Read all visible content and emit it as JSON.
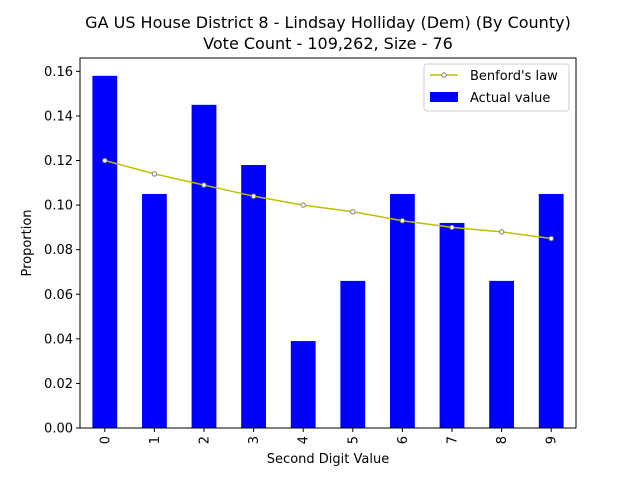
{
  "chart_data": {
    "type": "bar",
    "title_line1": "GA US House District 8 - Lindsay Holliday (Dem) (By County)",
    "title_line2": "Vote Count - 109,262, Size - 76",
    "xlabel": "Second Digit Value",
    "ylabel": "Proportion",
    "categories": [
      "0",
      "1",
      "2",
      "3",
      "4",
      "5",
      "6",
      "7",
      "8",
      "9"
    ],
    "series": [
      {
        "name": "Actual value",
        "kind": "bar",
        "color": "#0000ff",
        "values": [
          0.158,
          0.105,
          0.145,
          0.118,
          0.039,
          0.066,
          0.105,
          0.092,
          0.066,
          0.105
        ]
      },
      {
        "name": "Benford's law",
        "kind": "line",
        "color": "#bfbf00",
        "values": [
          0.12,
          0.114,
          0.109,
          0.104,
          0.1,
          0.097,
          0.093,
          0.09,
          0.088,
          0.085
        ]
      }
    ],
    "yticks": [
      "0.00",
      "0.02",
      "0.04",
      "0.06",
      "0.08",
      "0.10",
      "0.12",
      "0.14",
      "0.16"
    ],
    "ylim": [
      0,
      0.166
    ],
    "legend": "top-right",
    "grid": false
  }
}
